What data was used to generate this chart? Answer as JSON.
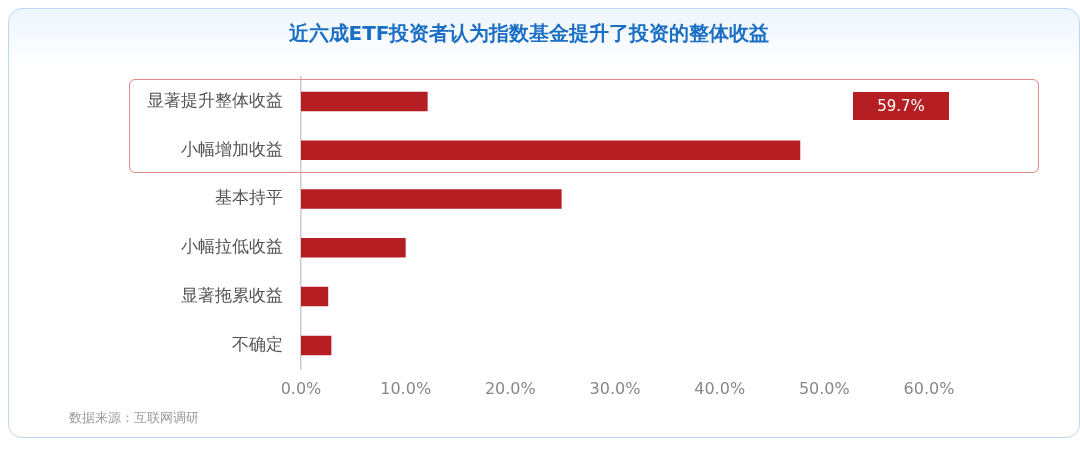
{
  "chart_data": {
    "type": "bar",
    "orientation": "horizontal",
    "title": "近六成ETF投资者认为指数基金提升了投资的整体收益",
    "categories": [
      "显著提升整体收益",
      "小幅增加收益",
      "基本持平",
      "小幅拉低收益",
      "显著拖累收益",
      "不确定"
    ],
    "values": [
      12.1,
      47.7,
      24.9,
      10.0,
      2.6,
      2.9
    ],
    "color": "#b51f24",
    "xlim": [
      0,
      60
    ],
    "xticks": [
      {
        "value": 0,
        "label": "0.0%"
      },
      {
        "value": 10,
        "label": "10.0%"
      },
      {
        "value": 20,
        "label": "20.0%"
      },
      {
        "value": 30,
        "label": "30.0%"
      },
      {
        "value": 40,
        "label": "40.0%"
      },
      {
        "value": 50,
        "label": "50.0%"
      },
      {
        "value": 60,
        "label": "60.0%"
      }
    ],
    "grid": false,
    "legend": false,
    "annotations": [
      "59.7%",
      "数据来源：互联网调研"
    ]
  }
}
